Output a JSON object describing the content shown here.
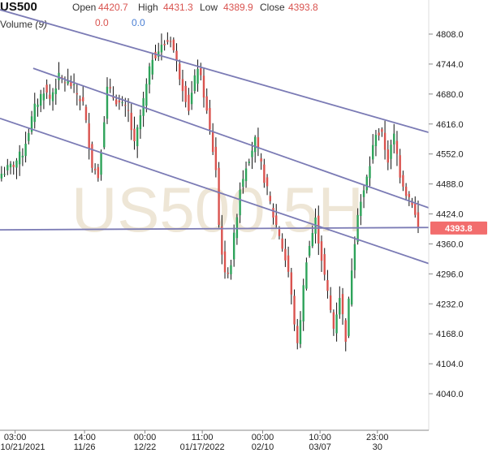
{
  "header": {
    "symbol": "US500",
    "open_label": "Open",
    "open_value": "4420.7",
    "high_label": "High",
    "high_value": "4431.3",
    "low_label": "Low",
    "low_value": "4389.9",
    "close_label": "Close",
    "close_value": "4393.8",
    "volume_label": "Volume",
    "volume_period": "(9)",
    "volume_value_1": "0.0",
    "volume_value_2": "0.0"
  },
  "watermark": "US500,5H",
  "colors": {
    "up": "#2ea35a",
    "down": "#d9534f",
    "wick": "#111111",
    "channel": "#7b7bb5",
    "price_tag": "#f26d6d"
  },
  "chart_data": {
    "type": "candlestick",
    "symbol": "US500",
    "timeframe": "5H",
    "last_price": 4393.8,
    "last_price_label": "4393.8",
    "ylim": [
      4000,
      4850
    ],
    "y_ticks": [
      4040.0,
      4104.0,
      4168.0,
      4232.0,
      4296.0,
      4360.0,
      4424.0,
      4488.0,
      4552.0,
      4616.0,
      4680.0,
      4744.0,
      4808.0
    ],
    "y_tick_labels": [
      "4040.0",
      "4104.0",
      "4168.0",
      "4232.0",
      "4296.0",
      "4360.0",
      "4424.0",
      "4488.0",
      "4552.0",
      "4616.0",
      "4680.0",
      "4744.0",
      "4808.0"
    ],
    "x_ticks": [
      {
        "time": "03:00",
        "date": "10/21/2021",
        "bar": 5
      },
      {
        "time": "14:00",
        "date": "11/26",
        "bar": 28
      },
      {
        "time": "00:00",
        "date": "12/22",
        "bar": 48
      },
      {
        "time": "11:00",
        "date": "01/17/2022",
        "bar": 67
      },
      {
        "time": "00:00",
        "date": "02/10",
        "bar": 87
      },
      {
        "time": "10:00",
        "date": "03/07",
        "bar": 106
      },
      {
        "time": "23:00",
        "date": "30",
        "bar": 125
      }
    ],
    "anchors": [
      [
        0,
        4510
      ],
      [
        4,
        4530
      ],
      [
        7,
        4555
      ],
      [
        11,
        4650
      ],
      [
        14,
        4690
      ],
      [
        16,
        4670
      ],
      [
        19,
        4715
      ],
      [
        23,
        4700
      ],
      [
        27,
        4660
      ],
      [
        30,
        4530
      ],
      [
        32,
        4505
      ],
      [
        35,
        4690
      ],
      [
        39,
        4660
      ],
      [
        42,
        4640
      ],
      [
        44,
        4570
      ],
      [
        47,
        4665
      ],
      [
        50,
        4760
      ],
      [
        53,
        4780
      ],
      [
        56,
        4800
      ],
      [
        59,
        4720
      ],
      [
        62,
        4650
      ],
      [
        65,
        4740
      ],
      [
        67,
        4680
      ],
      [
        69,
        4600
      ],
      [
        71,
        4520
      ],
      [
        72,
        4400
      ],
      [
        74,
        4290
      ],
      [
        76,
        4320
      ],
      [
        79,
        4480
      ],
      [
        81,
        4530
      ],
      [
        84,
        4580
      ],
      [
        87,
        4500
      ],
      [
        90,
        4420
      ],
      [
        92,
        4380
      ],
      [
        95,
        4300
      ],
      [
        98,
        4140
      ],
      [
        101,
        4330
      ],
      [
        104,
        4410
      ],
      [
        107,
        4290
      ],
      [
        110,
        4180
      ],
      [
        112,
        4250
      ],
      [
        114,
        4160
      ],
      [
        116,
        4310
      ],
      [
        118,
        4430
      ],
      [
        120,
        4470
      ],
      [
        122,
        4530
      ],
      [
        124,
        4600
      ],
      [
        126,
        4590
      ],
      [
        128,
        4540
      ],
      [
        130,
        4590
      ],
      [
        132,
        4510
      ],
      [
        134,
        4470
      ],
      [
        136,
        4450
      ],
      [
        137,
        4420
      ],
      [
        138,
        4393.8
      ]
    ],
    "trendlines": [
      {
        "name": "channel-upper",
        "from": [
          0,
          4860
        ],
        "to": [
          142,
          4598
        ]
      },
      {
        "name": "channel-middle",
        "from": [
          11,
          4735
        ],
        "to": [
          142,
          4437
        ]
      },
      {
        "name": "channel-lower",
        "from": [
          0,
          4628
        ],
        "to": [
          142,
          4318
        ]
      },
      {
        "name": "horizontal-support",
        "from": [
          0,
          4390
        ],
        "to": [
          142,
          4395
        ]
      }
    ]
  }
}
